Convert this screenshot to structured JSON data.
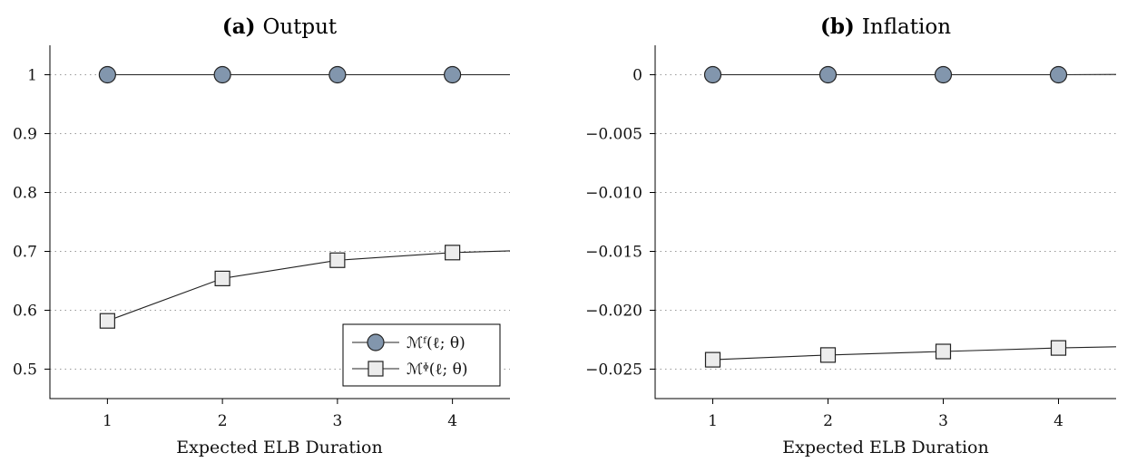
{
  "colors": {
    "circle_fill": "#8296ad",
    "square_fill": "#ececec",
    "marker_stroke": "#222222"
  },
  "legend": [
    {
      "label": "ℳᶠ(ℓ; θ)",
      "marker": "circle-marker-icon"
    },
    {
      "label": "ℳᶲ(ℓ; θ)",
      "marker": "square-marker-icon"
    }
  ],
  "chart_data": [
    {
      "type": "line",
      "panel_label": "(a)",
      "title": "Output",
      "xlabel": "Expected ELB Duration",
      "ylabel": "",
      "xlim": [
        0.5,
        4.5
      ],
      "ylim": [
        0.45,
        1.05
      ],
      "x_ticks": [
        1,
        2,
        3,
        4
      ],
      "x_tick_labels": [
        "1",
        "2",
        "3",
        "4"
      ],
      "y_ticks": [
        0.5,
        0.6,
        0.7,
        0.8,
        0.9,
        1.0
      ],
      "y_tick_labels": [
        "0.5",
        "0.6",
        "0.7",
        "0.8",
        "0.9",
        "1"
      ],
      "grid": "horizontal dotted",
      "legend_position": "bottom-right",
      "series": [
        {
          "name": "ℳᶠ(ℓ; θ)",
          "marker": "circle",
          "x": [
            1,
            2,
            3,
            4
          ],
          "values": [
            1.0,
            1.0,
            1.0,
            1.0
          ],
          "line_extends_to": 4.5,
          "line_end_value": 1.0
        },
        {
          "name": "ℳᶲ(ℓ; θ)",
          "marker": "square",
          "x": [
            1,
            2,
            3,
            4
          ],
          "values": [
            0.582,
            0.654,
            0.685,
            0.698
          ],
          "line_extends_to": 4.5,
          "line_end_value": 0.701
        }
      ]
    },
    {
      "type": "line",
      "panel_label": "(b)",
      "title": "Inflation",
      "xlabel": "Expected ELB Duration",
      "ylabel": "",
      "xlim": [
        0.5,
        4.5
      ],
      "ylim": [
        -0.0275,
        0.0025
      ],
      "x_ticks": [
        1,
        2,
        3,
        4
      ],
      "x_tick_labels": [
        "1",
        "2",
        "3",
        "4"
      ],
      "y_ticks": [
        0,
        -0.005,
        -0.01,
        -0.015,
        -0.02,
        -0.025
      ],
      "y_tick_labels": [
        "0",
        "−0.005",
        "−0.010",
        "−0.015",
        "−0.020",
        "−0.025"
      ],
      "grid": "horizontal dotted",
      "legend_position": "none",
      "series": [
        {
          "name": "ℳᶠ(ℓ; θ)",
          "marker": "circle",
          "x": [
            1,
            2,
            3,
            4
          ],
          "values": [
            0.0,
            0.0,
            0.0,
            0.0
          ],
          "line_extends_to": 4.5,
          "line_end_value": 2e-05
        },
        {
          "name": "ℳᶲ(ℓ; θ)",
          "marker": "square",
          "x": [
            1,
            2,
            3,
            4
          ],
          "values": [
            -0.0242,
            -0.0238,
            -0.0235,
            -0.0232
          ],
          "line_extends_to": 4.5,
          "line_end_value": -0.0231
        }
      ]
    }
  ]
}
